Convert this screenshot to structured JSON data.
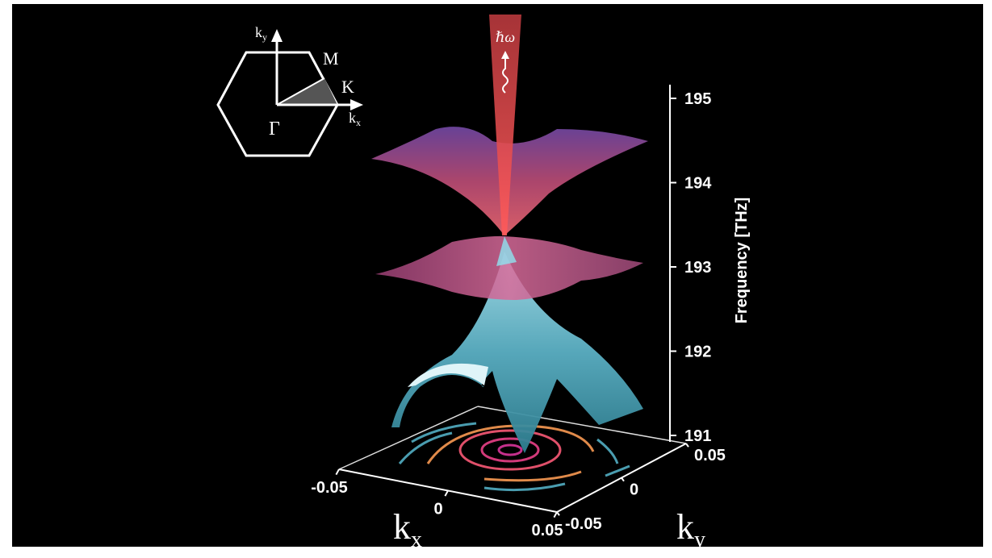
{
  "figure": {
    "inset": {
      "ky_axis": {
        "main": "k",
        "sub": "y"
      },
      "kx_axis": {
        "main": "k",
        "sub": "x"
      },
      "points": [
        "M",
        "K",
        "Γ"
      ]
    },
    "beam_label": "ℏω",
    "z_axis": {
      "label": "Frequency [THz]",
      "lim": [
        191,
        195
      ],
      "ticks": [
        191,
        192,
        193,
        194,
        195
      ]
    },
    "kx_axis": {
      "main": "k",
      "sub": "x",
      "lim": [
        -0.05,
        0.05
      ],
      "ticks": [
        -0.05,
        0,
        0.05
      ]
    },
    "ky_axis": {
      "main": "k",
      "sub": "y",
      "lim": [
        -0.05,
        0.05
      ],
      "ticks": [
        -0.05,
        0,
        0.05
      ]
    }
  }
}
